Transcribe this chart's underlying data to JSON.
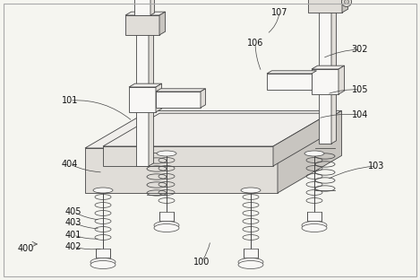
{
  "background_color": "#f5f5f0",
  "line_color": "#444444",
  "label_color": "#111111",
  "label_fontsize": 7.0,
  "border_color": "#aaaaaa",
  "figsize": [
    4.69,
    3.12
  ],
  "dpi": 100,
  "face_light": "#f0eeeb",
  "face_mid": "#e0ddd8",
  "face_dark": "#c8c5c0",
  "face_white": "#f8f7f5"
}
